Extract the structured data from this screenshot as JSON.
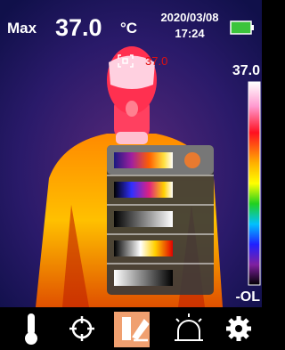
{
  "header": {
    "label": "Max",
    "value": "37.0",
    "unit": "°C",
    "date": "2020/03/08",
    "time": "17:24"
  },
  "spot_temperature": "37.0",
  "scale": {
    "max": "37.0",
    "min": "-OL"
  }
}
